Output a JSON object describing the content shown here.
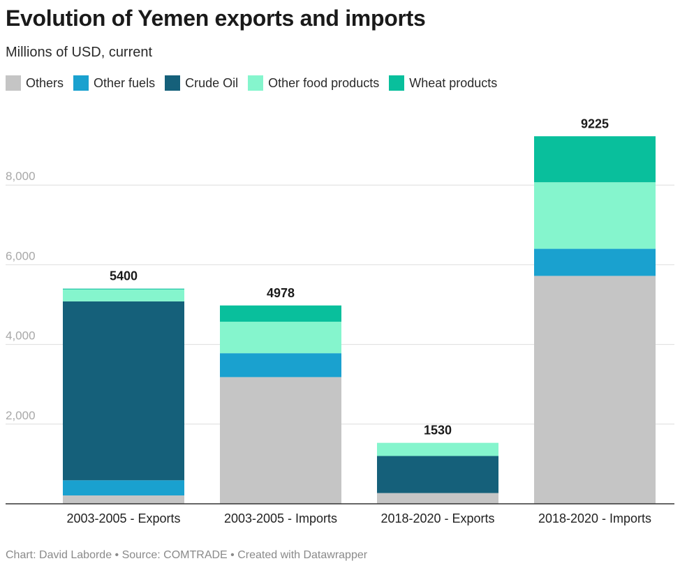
{
  "header": {
    "title": "Evolution of Yemen exports and imports",
    "subtitle": "Millions of USD, current"
  },
  "legend": [
    {
      "label": "Others",
      "color": "#c5c5c5"
    },
    {
      "label": "Other fuels",
      "color": "#1aa1cf"
    },
    {
      "label": "Crude Oil",
      "color": "#15607a"
    },
    {
      "label": "Other food products",
      "color": "#85f5cd"
    },
    {
      "label": "Wheat products",
      "color": "#09bf9c"
    }
  ],
  "chart_data": {
    "type": "bar",
    "stacked": true,
    "title": "Evolution of Yemen exports and imports",
    "subtitle": "Millions of USD, current",
    "xlabel": "",
    "ylabel": "",
    "ylim": [
      0,
      9225
    ],
    "yticks": [
      2000,
      4000,
      6000,
      8000
    ],
    "ytick_labels": [
      "2,000",
      "4,000",
      "6,000",
      "8,000"
    ],
    "grid": true,
    "legend_position": "top-left",
    "categories": [
      "2003-2005 - Exports",
      "2003-2005 - Imports",
      "2018-2020 - Exports",
      "2018-2020 - Imports"
    ],
    "totals": [
      5400,
      4978,
      1530,
      9225
    ],
    "series": [
      {
        "name": "Others",
        "color": "#c5c5c5",
        "values": [
          210,
          3180,
          270,
          5720
        ]
      },
      {
        "name": "Other fuels",
        "color": "#1aa1cf",
        "values": [
          380,
          600,
          0,
          680
        ]
      },
      {
        "name": "Crude Oil",
        "color": "#15607a",
        "values": [
          4490,
          0,
          930,
          0
        ]
      },
      {
        "name": "Other food products",
        "color": "#85f5cd",
        "values": [
          300,
          790,
          330,
          1670
        ]
      },
      {
        "name": "Wheat products",
        "color": "#09bf9c",
        "values": [
          20,
          408,
          0,
          1155
        ]
      }
    ]
  },
  "footer": {
    "credit": "Chart: David Laborde • Source: COMTRADE • Created with Datawrapper"
  }
}
